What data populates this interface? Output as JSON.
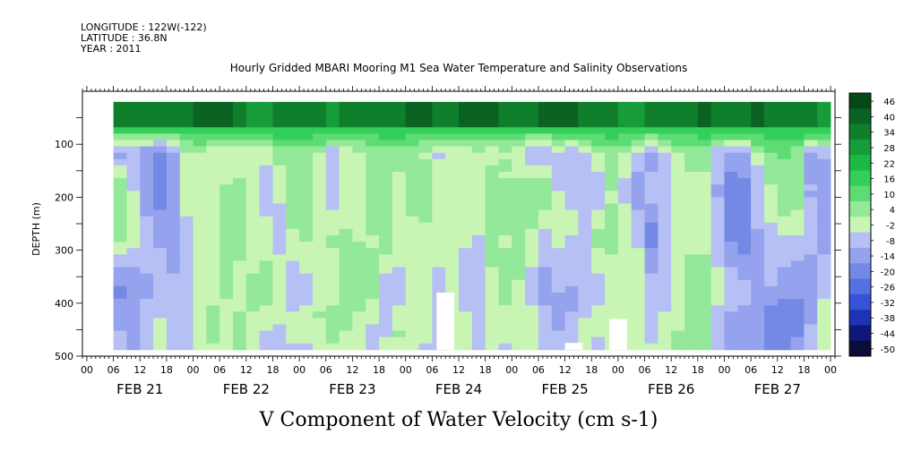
{
  "header": {
    "longitude": "LONGITUDE : 122W(-122)",
    "latitude": "LATITUDE : 36.8N",
    "year": "YEAR : 2011"
  },
  "chart_data": {
    "type": "heatmap",
    "title": "Hourly Gridded MBARI Mooring M1 Sea Water Temperature and Salinity Observations",
    "xlabel": "V Component of Water Velocity (cm s-1)",
    "ylabel": "DEPTH (m)",
    "x_range": [
      "2011-02-20T23:00",
      "2011-02-28T01:00"
    ],
    "x_hour_ticks": [
      "00",
      "06",
      "12",
      "18",
      "00",
      "06",
      "12",
      "18",
      "00",
      "06",
      "12",
      "18",
      "00",
      "06",
      "12",
      "18",
      "00",
      "06",
      "12",
      "18",
      "00",
      "06",
      "12",
      "18",
      "00",
      "06",
      "12",
      "18",
      "00"
    ],
    "x_day_labels": [
      "FEB 21",
      "FEB 22",
      "FEB 23",
      "FEB 24",
      "FEB 25",
      "FEB 26",
      "FEB 27"
    ],
    "ylim": [
      500,
      0
    ],
    "y_ticks": [
      100,
      200,
      300,
      400,
      500
    ],
    "data_extent": {
      "time_start": "2011-02-21T06:00",
      "time_end": "2011-02-28T00:00",
      "depth_min": 20,
      "depth_max": 488
    },
    "colorbar_levels": [
      46,
      40,
      34,
      28,
      22,
      16,
      10,
      4,
      -2,
      -8,
      -14,
      -20,
      -26,
      -32,
      -38,
      -44,
      -50
    ],
    "colorbar_labels": [
      "46",
      "40",
      "34",
      "28",
      "22",
      "16",
      "10",
      "4",
      "-2",
      "-8",
      "-14",
      "-20",
      "-26",
      "-32",
      "-38",
      "-44",
      "-50"
    ],
    "colormap": [
      "#0c0c3c",
      "#0f1778",
      "#1f33b5",
      "#3553d6",
      "#5570e0",
      "#7488e6",
      "#95a3ee",
      "#b6c0f4",
      "#c8f5b4",
      "#94e89a",
      "#5cdc73",
      "#33cf58",
      "#1cb844",
      "#169c38",
      "#0f7f2c",
      "#0a6322",
      "#064818"
    ],
    "features": {
      "surface_layer": {
        "depth_range": [
          20,
          60
        ],
        "value": 30
      },
      "gaps": [
        {
          "time": "2011-02-24T09:00",
          "depth_range": [
            380,
            488
          ]
        },
        {
          "time": "2011-02-25T14:00",
          "depth_range": [
            475,
            488
          ]
        },
        {
          "time": "2011-02-26T00:00",
          "depth_range": [
            430,
            488
          ]
        }
      ]
    }
  }
}
